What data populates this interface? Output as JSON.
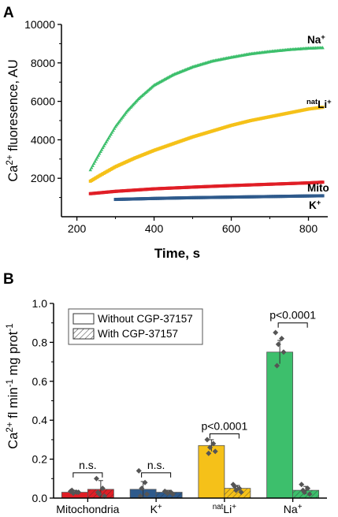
{
  "chart_data": [
    {
      "panel_label": "A",
      "type": "scatter",
      "xlabel": "Time, s",
      "ylabel_parts": [
        "Ca",
        "2+",
        " fluoresence, AU"
      ],
      "xlim": [
        160,
        850
      ],
      "ylim": [
        0,
        10000
      ],
      "x_ticks": [
        200,
        400,
        600,
        800
      ],
      "y_ticks": [
        2000,
        4000,
        6000,
        8000,
        10000
      ],
      "grid": false,
      "series": [
        {
          "base": "Na",
          "sup": "+",
          "pre": "",
          "color": "#3dbf6c",
          "marker": "triangle",
          "points": [
            [
              235,
              2450
            ],
            [
              250,
              3000
            ],
            [
              270,
              3700
            ],
            [
              300,
              4700
            ],
            [
              330,
              5500
            ],
            [
              360,
              6150
            ],
            [
              400,
              6850
            ],
            [
              450,
              7400
            ],
            [
              500,
              7800
            ],
            [
              550,
              8100
            ],
            [
              600,
              8300
            ],
            [
              650,
              8480
            ],
            [
              700,
              8600
            ],
            [
              750,
              8700
            ],
            [
              800,
              8770
            ],
            [
              840,
              8800
            ]
          ]
        },
        {
          "base": "Li",
          "sup": "+",
          "pre": "nat",
          "color": "#f5c119",
          "marker": "square",
          "points": [
            [
              235,
              1850
            ],
            [
              260,
              2150
            ],
            [
              300,
              2600
            ],
            [
              350,
              3050
            ],
            [
              400,
              3450
            ],
            [
              450,
              3800
            ],
            [
              500,
              4150
            ],
            [
              550,
              4450
            ],
            [
              600,
              4750
            ],
            [
              650,
              5000
            ],
            [
              700,
              5200
            ],
            [
              750,
              5400
            ],
            [
              800,
              5600
            ],
            [
              840,
              5700
            ]
          ]
        },
        {
          "base": "Mito",
          "sup": "",
          "pre": "",
          "color": "#e01e26",
          "marker": "square",
          "points": [
            [
              235,
              1200
            ],
            [
              300,
              1320
            ],
            [
              400,
              1450
            ],
            [
              500,
              1540
            ],
            [
              600,
              1620
            ],
            [
              700,
              1690
            ],
            [
              800,
              1760
            ],
            [
              840,
              1800
            ]
          ]
        },
        {
          "base": "K",
          "sup": "+",
          "pre": "",
          "color": "#2e5a8c",
          "marker": "square",
          "points": [
            [
              300,
              900
            ],
            [
              400,
              950
            ],
            [
              500,
              990
            ],
            [
              600,
              1020
            ],
            [
              700,
              1050
            ],
            [
              800,
              1080
            ],
            [
              840,
              1090
            ]
          ]
        }
      ]
    },
    {
      "panel_label": "B",
      "type": "bar",
      "ylabel_parts": [
        "Ca",
        "2+",
        " fl min",
        "-1",
        " mg prot",
        "-1"
      ],
      "ylim": [
        0,
        1.0
      ],
      "y_ticks": [
        "0.0",
        "0.2",
        "0.4",
        "0.6",
        "0.8",
        "1.0"
      ],
      "grid": false,
      "legend": {
        "position": "top-left",
        "entries": [
          {
            "label": "Without CGP-37157",
            "pattern": "solid"
          },
          {
            "label": "With CGP-37157",
            "pattern": "hatched"
          }
        ]
      },
      "groups": [
        {
          "label": "Mitochondria",
          "label_pre": "",
          "label_sup": "",
          "color": "#e01e26",
          "without": {
            "value": 0.03,
            "err": 0.01,
            "points": [
              0.035,
              0.03,
              0.025,
              0.03,
              0.04
            ]
          },
          "with": {
            "value": 0.045,
            "err": 0.045,
            "points": [
              0.1,
              0.05,
              0.02,
              0.01,
              0.03
            ]
          },
          "annotation": "n.s.",
          "annotation_y": 0.13
        },
        {
          "label": "K",
          "label_pre": "",
          "label_sup": "+",
          "color": "#2e5a8c",
          "without": {
            "value": 0.045,
            "err": 0.04,
            "points": [
              0.14,
              0.08,
              0.05,
              0.02,
              0.01
            ]
          },
          "with": {
            "value": 0.03,
            "err": 0.01,
            "points": [
              0.035,
              0.03,
              0.025,
              0.02,
              0.03
            ]
          },
          "annotation": "n.s.",
          "annotation_y": 0.13
        },
        {
          "label": "Li",
          "label_pre": "nat",
          "label_sup": "+",
          "color": "#f5c119",
          "without": {
            "value": 0.27,
            "err": 0.03,
            "points": [
              0.3,
              0.28,
              0.26,
              0.24,
              0.23
            ]
          },
          "with": {
            "value": 0.05,
            "err": 0.015,
            "points": [
              0.07,
              0.05,
              0.04,
              0.03,
              0.06
            ]
          },
          "annotation": "p<0.0001",
          "annotation_y": 0.33
        },
        {
          "label": "Na",
          "label_pre": "",
          "label_sup": "+",
          "color": "#3dbf6c",
          "without": {
            "value": 0.75,
            "err": 0.06,
            "points": [
              0.85,
              0.82,
              0.79,
              0.75,
              0.68
            ]
          },
          "with": {
            "value": 0.04,
            "err": 0.02,
            "points": [
              0.07,
              0.05,
              0.03,
              0.02,
              0.04
            ]
          },
          "annotation": "p<0.0001",
          "annotation_y": 0.9
        }
      ]
    }
  ]
}
